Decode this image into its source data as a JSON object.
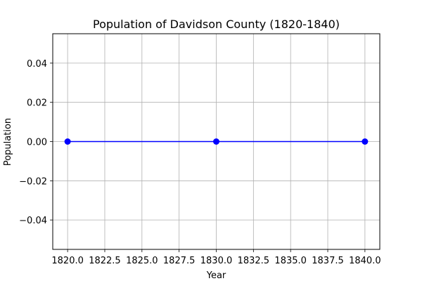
{
  "chart_data": {
    "type": "line",
    "title": "Population of Davidson County (1820-1840)",
    "xlabel": "Year",
    "ylabel": "Population",
    "x": [
      1820,
      1830,
      1840
    ],
    "series": [
      {
        "values": [
          0,
          0,
          0
        ],
        "color": "#0000ff",
        "marker": "circle"
      }
    ],
    "xlim": [
      1819,
      1841
    ],
    "ylim": [
      -0.055,
      0.055
    ],
    "xticks": [
      "1820.0",
      "1822.5",
      "1825.0",
      "1827.5",
      "1830.0",
      "1832.5",
      "1835.0",
      "1837.5",
      "1840.0"
    ],
    "yticks": [
      "0.04",
      "0.02",
      "0.00",
      "−0.02",
      "−0.04"
    ],
    "grid": true,
    "grid_color": "#b0b0b0",
    "legend": null
  }
}
